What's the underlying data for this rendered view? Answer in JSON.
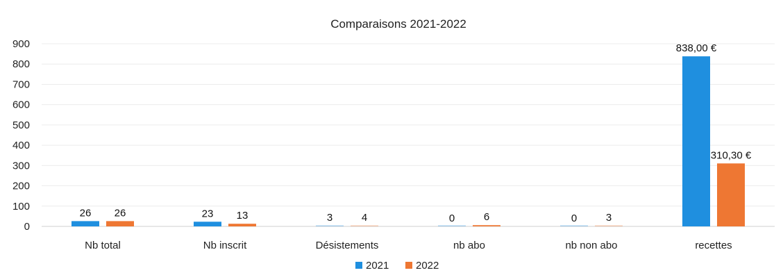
{
  "chart_data": {
    "type": "bar",
    "title": "Comparaisons 2021-2022",
    "xlabel": "",
    "ylabel": "",
    "ylim": [
      0,
      900
    ],
    "yticks": [
      "0",
      "100",
      "200",
      "300",
      "400",
      "500",
      "600",
      "700",
      "800",
      "900"
    ],
    "categories": [
      "Nb total",
      "Nb inscrit",
      "Désistements",
      "nb abo",
      "nb non abo",
      "recettes"
    ],
    "series": [
      {
        "name": "2021",
        "color": "#1f8fdf",
        "values": [
          26,
          23,
          3,
          0,
          0,
          838
        ],
        "labels": [
          "26",
          "23",
          "3",
          "0",
          "0",
          "838,00 €"
        ]
      },
      {
        "name": "2022",
        "color": "#ee7733",
        "values": [
          26,
          13,
          4,
          6,
          3,
          310.3
        ],
        "labels": [
          "26",
          "13",
          "4",
          "6",
          "3",
          "310,30 €"
        ]
      }
    ],
    "grid": true,
    "legend": "bottom-center"
  }
}
